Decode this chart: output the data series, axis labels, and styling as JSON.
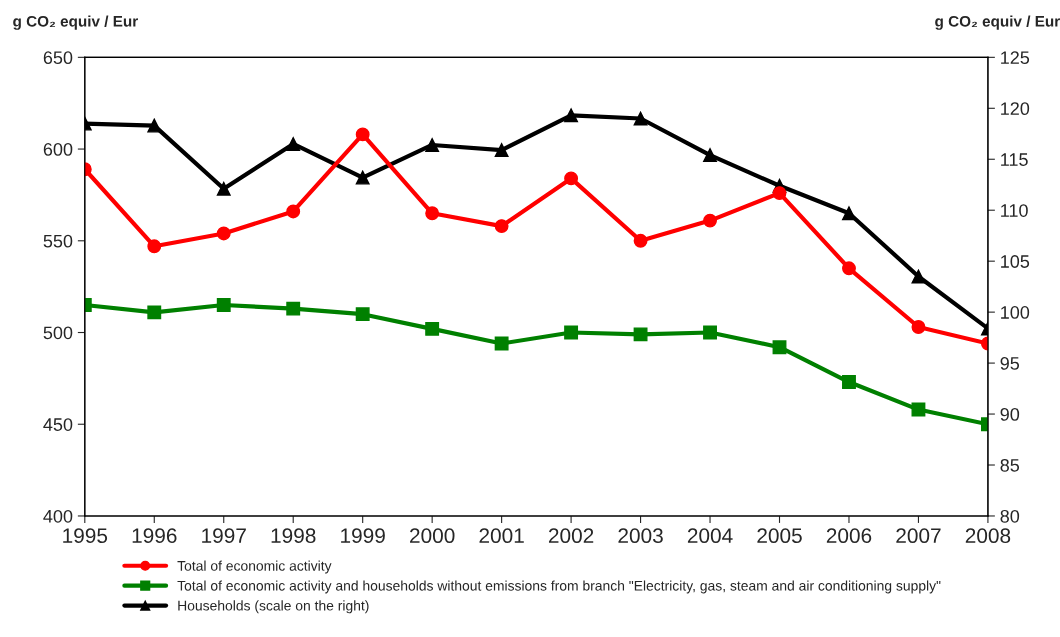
{
  "chart_data": {
    "type": "line",
    "ylabel": "g CO₂ equiv / Eur",
    "y2label": "g CO₂ equiv / Eur",
    "x": [
      1995,
      1996,
      1997,
      1998,
      1999,
      2000,
      2001,
      2002,
      2003,
      2004,
      2005,
      2006,
      2007,
      2008
    ],
    "xlim": [
      1995,
      2008
    ],
    "xticks": [
      1995,
      1996,
      1997,
      1998,
      1999,
      2000,
      2001,
      2002,
      2003,
      2004,
      2005,
      2006,
      2007,
      2008
    ],
    "ylim": [
      400,
      650
    ],
    "yticks": [
      400,
      450,
      500,
      550,
      600,
      650
    ],
    "y2lim": [
      80,
      125
    ],
    "y2ticks": [
      80,
      85,
      90,
      95,
      100,
      105,
      110,
      115,
      120,
      125
    ],
    "grid": false,
    "legend": "bottom",
    "line_style": "solid",
    "series": [
      {
        "name": "Total of economic activity",
        "color": "#ff0000",
        "marker": "circle",
        "values": [
          589,
          547,
          554,
          566,
          608,
          565,
          558,
          584,
          550,
          561,
          576,
          535,
          503,
          494
        ]
      },
      {
        "name": "Total of economic activity and households without emissions from branch \"Electricity, gas, steam and air conditioning supply\"",
        "color": "#008000",
        "marker": "square",
        "values": [
          515,
          511,
          515,
          513,
          510,
          502,
          494,
          500,
          499,
          500,
          492,
          473,
          458,
          450
        ]
      },
      {
        "name": "Households (scale on the right)",
        "color": "#000000",
        "marker": "triangle",
        "axis": "y2",
        "values": [
          118.5,
          118.3,
          112.1,
          116.5,
          113.2,
          116.4,
          115.9,
          119.3,
          119.0,
          115.4,
          112.4,
          109.7,
          103.5,
          98.4
        ]
      }
    ]
  }
}
